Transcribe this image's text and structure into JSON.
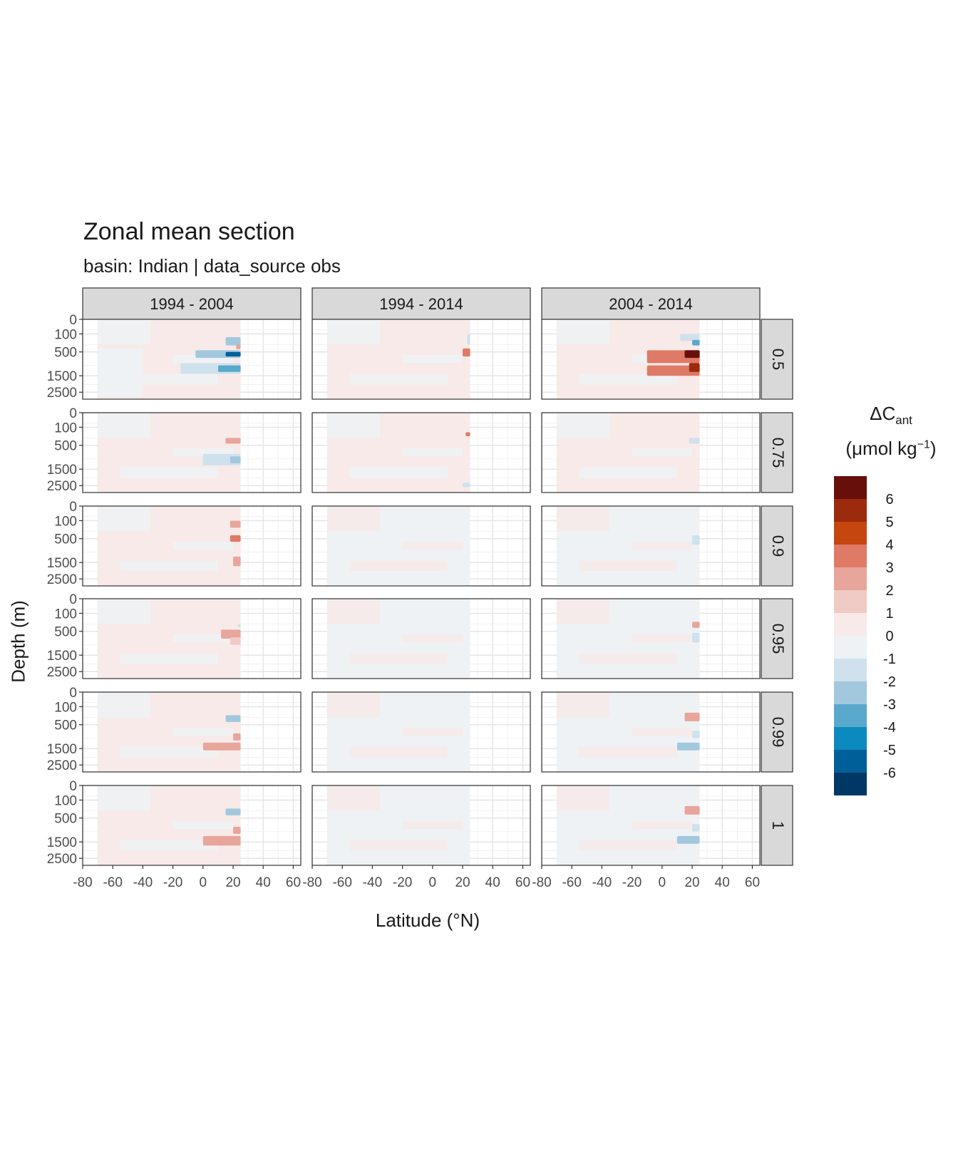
{
  "title": "Zonal mean section",
  "subtitle": "basin: Indian | data_source obs",
  "xlabel": "Latitude (°N)",
  "ylabel": "Depth (m)",
  "legend": {
    "title_main": "ΔC",
    "title_sub": "ant",
    "unit_pre": "(μmol kg",
    "unit_sup": "−1",
    "unit_post": ")"
  },
  "chart_data": {
    "type": "heatmap",
    "title": "Zonal mean section",
    "subtitle": "basin: Indian | data_source obs",
    "xlabel": "Latitude (°N)",
    "ylabel": "Depth (m)",
    "xlim": [
      -80,
      65
    ],
    "ylim": [
      3000,
      0
    ],
    "y_scale": "sqrt, reversed",
    "x_ticks": [
      -80,
      -60,
      -40,
      -20,
      0,
      20,
      40,
      60
    ],
    "x_tick_labels": [
      "-80",
      "-60",
      "-40",
      "-20",
      "0",
      "20",
      "40",
      "60"
    ],
    "y_ticks": [
      0,
      100,
      500,
      1500,
      2500
    ],
    "y_tick_labels": [
      "0",
      "100",
      "500",
      "1500",
      "2500"
    ],
    "data_lat_range": [
      -70,
      25
    ],
    "facet_columns": [
      "1994 - 2004",
      "1994 - 2014",
      "2004 - 2014"
    ],
    "facet_rows": [
      "0.5",
      "0.75",
      "0.9",
      "0.95",
      "0.99",
      "1"
    ],
    "grid": true,
    "legend_position": "right",
    "colorbar": {
      "labels": [
        "6",
        "5",
        "4",
        "3",
        "2",
        "1",
        "0",
        "-1",
        "-2",
        "-3",
        "-4",
        "-5",
        "-6"
      ],
      "bins": [
        {
          "range": [
            6,
            7
          ],
          "color": "#67100b"
        },
        {
          "range": [
            5,
            6
          ],
          "color": "#9c2a0c"
        },
        {
          "range": [
            4,
            5
          ],
          "color": "#c5460f"
        },
        {
          "range": [
            3,
            4
          ],
          "color": "#de7a66"
        },
        {
          "range": [
            2,
            3
          ],
          "color": "#e8a59c"
        },
        {
          "range": [
            1,
            2
          ],
          "color": "#f0cbc5"
        },
        {
          "range": [
            0,
            1
          ],
          "color": "#f7eae9"
        },
        {
          "range": [
            -1,
            0
          ],
          "color": "#eef2f5"
        },
        {
          "range": [
            -2,
            -1
          ],
          "color": "#cfe1ed"
        },
        {
          "range": [
            -3,
            -2
          ],
          "color": "#a2c8de"
        },
        {
          "range": [
            -4,
            -3
          ],
          "color": "#5aa8cc"
        },
        {
          "range": [
            -5,
            -4
          ],
          "color": "#0a8abf"
        },
        {
          "range": [
            -6,
            -5
          ],
          "color": "#005f99"
        },
        {
          "range": [
            -7,
            -6
          ],
          "color": "#003865"
        }
      ]
    },
    "panels": [
      {
        "row": "0.5",
        "col": "1994 - 2004",
        "background_bin": "0 to 1",
        "features": [
          {
            "lat": [
              15,
              25
            ],
            "depth": [
              150,
              320
            ],
            "value": -3
          },
          {
            "lat": [
              22,
              25
            ],
            "depth": [
              300,
              420
            ],
            "value": 2
          },
          {
            "lat": [
              -5,
              25
            ],
            "depth": [
              450,
              700
            ],
            "value": -3
          },
          {
            "lat": [
              15,
              25
            ],
            "depth": [
              500,
              650
            ],
            "value": -6
          },
          {
            "lat": [
              -15,
              25
            ],
            "depth": [
              900,
              1400
            ],
            "value": -2
          },
          {
            "lat": [
              10,
              25
            ],
            "depth": [
              1000,
              1300
            ],
            "value": -4
          },
          {
            "lat": [
              -70,
              -40
            ],
            "depth": [
              400,
              2800
            ],
            "value": -0.5
          }
        ]
      },
      {
        "row": "0.5",
        "col": "1994 - 2014",
        "background_bin": "0 to 1",
        "features": [
          {
            "lat": [
              23,
              25
            ],
            "depth": [
              100,
              300
            ],
            "value": -2
          },
          {
            "lat": [
              20,
              25
            ],
            "depth": [
              400,
              650
            ],
            "value": 3
          }
        ]
      },
      {
        "row": "0.5",
        "col": "2004 - 2014",
        "background_bin": "0 to 1",
        "features": [
          {
            "lat": [
              12,
              25
            ],
            "depth": [
              100,
              220
            ],
            "value": -2
          },
          {
            "lat": [
              20,
              25
            ],
            "depth": [
              200,
              320
            ],
            "value": -4
          },
          {
            "lat": [
              -10,
              25
            ],
            "depth": [
              450,
              900
            ],
            "value": 3
          },
          {
            "lat": [
              15,
              25
            ],
            "depth": [
              450,
              700
            ],
            "value": 6
          },
          {
            "lat": [
              -10,
              25
            ],
            "depth": [
              1000,
              1500
            ],
            "value": 3
          },
          {
            "lat": [
              18,
              25
            ],
            "depth": [
              900,
              1300
            ],
            "value": 5
          }
        ]
      },
      {
        "row": "0.75",
        "col": "1994 - 2004",
        "background_bin": "0 to 1",
        "features": [
          {
            "lat": [
              15,
              25
            ],
            "depth": [
              300,
              450
            ],
            "value": 2
          },
          {
            "lat": [
              0,
              25
            ],
            "depth": [
              800,
              1300
            ],
            "value": -2
          },
          {
            "lat": [
              18,
              25
            ],
            "depth": [
              900,
              1200
            ],
            "value": -3
          }
        ]
      },
      {
        "row": "0.75",
        "col": "1994 - 2014",
        "background_bin": "0 to 1",
        "features": [
          {
            "lat": [
              22,
              25
            ],
            "depth": [
              180,
              260
            ],
            "value": 3
          },
          {
            "lat": [
              20,
              25
            ],
            "depth": [
              2300,
              2600
            ],
            "value": -2
          }
        ]
      },
      {
        "row": "0.75",
        "col": "2004 - 2014",
        "background_bin": "0 to 1",
        "features": [
          {
            "lat": [
              18,
              25
            ],
            "depth": [
              300,
              450
            ],
            "value": -2
          }
        ]
      },
      {
        "row": "0.9",
        "col": "1994 - 2004",
        "background_bin": "0 to 1",
        "features": [
          {
            "lat": [
              18,
              25
            ],
            "depth": [
              100,
              220
            ],
            "value": 2
          },
          {
            "lat": [
              18,
              25
            ],
            "depth": [
              400,
              600
            ],
            "value": 3
          },
          {
            "lat": [
              20,
              25
            ],
            "depth": [
              1200,
              1700
            ],
            "value": 2
          }
        ]
      },
      {
        "row": "0.9",
        "col": "1994 - 2014",
        "background_bin": "-1 to 0",
        "features": []
      },
      {
        "row": "0.9",
        "col": "2004 - 2014",
        "background_bin": "-1 to 0",
        "features": [
          {
            "lat": [
              20,
              25
            ],
            "depth": [
              400,
              700
            ],
            "value": -2
          }
        ]
      },
      {
        "row": "0.95",
        "col": "1994 - 2004",
        "background_bin": "0 to 1",
        "features": [
          {
            "lat": [
              23,
              25
            ],
            "depth": [
              300,
              380
            ],
            "value": -2
          },
          {
            "lat": [
              12,
              25
            ],
            "depth": [
              450,
              750
            ],
            "value": 2
          },
          {
            "lat": [
              18,
              25
            ],
            "depth": [
              700,
              1000
            ],
            "value": 1
          }
        ]
      },
      {
        "row": "0.95",
        "col": "1994 - 2014",
        "background_bin": "-1 to 0",
        "features": []
      },
      {
        "row": "0.95",
        "col": "2004 - 2014",
        "background_bin": "-1 to 0",
        "features": [
          {
            "lat": [
              20,
              25
            ],
            "depth": [
              250,
              400
            ],
            "value": 2
          },
          {
            "lat": [
              20,
              25
            ],
            "depth": [
              550,
              900
            ],
            "value": -2
          }
        ]
      },
      {
        "row": "0.99",
        "col": "1994 - 2004",
        "background_bin": "0 to 1",
        "features": [
          {
            "lat": [
              15,
              25
            ],
            "depth": [
              250,
              420
            ],
            "value": -3
          },
          {
            "lat": [
              20,
              25
            ],
            "depth": [
              800,
              1100
            ],
            "value": 2
          },
          {
            "lat": [
              0,
              25
            ],
            "depth": [
              1200,
              1600
            ],
            "value": 2
          }
        ]
      },
      {
        "row": "0.99",
        "col": "1994 - 2014",
        "background_bin": "-1 to 0",
        "features": []
      },
      {
        "row": "0.99",
        "col": "2004 - 2014",
        "background_bin": "-1 to 0",
        "features": [
          {
            "lat": [
              15,
              25
            ],
            "depth": [
              200,
              400
            ],
            "value": 2
          },
          {
            "lat": [
              20,
              25
            ],
            "depth": [
              700,
              1000
            ],
            "value": -2
          },
          {
            "lat": [
              10,
              25
            ],
            "depth": [
              1200,
              1600
            ],
            "value": -3
          }
        ]
      },
      {
        "row": "1",
        "col": "1994 - 2004",
        "background_bin": "0 to 1",
        "features": [
          {
            "lat": [
              15,
              25
            ],
            "depth": [
              250,
              420
            ],
            "value": -3
          },
          {
            "lat": [
              20,
              25
            ],
            "depth": [
              800,
              1100
            ],
            "value": 2
          },
          {
            "lat": [
              0,
              25
            ],
            "depth": [
              1200,
              1700
            ],
            "value": 2
          }
        ]
      },
      {
        "row": "1",
        "col": "1994 - 2014",
        "background_bin": "-1 to 0",
        "features": []
      },
      {
        "row": "1",
        "col": "2004 - 2014",
        "background_bin": "-1 to 0",
        "features": [
          {
            "lat": [
              15,
              25
            ],
            "depth": [
              200,
              400
            ],
            "value": 2
          },
          {
            "lat": [
              20,
              25
            ],
            "depth": [
              700,
              1000
            ],
            "value": -2
          },
          {
            "lat": [
              10,
              25
            ],
            "depth": [
              1200,
              1600
            ],
            "value": -3
          }
        ]
      }
    ]
  }
}
